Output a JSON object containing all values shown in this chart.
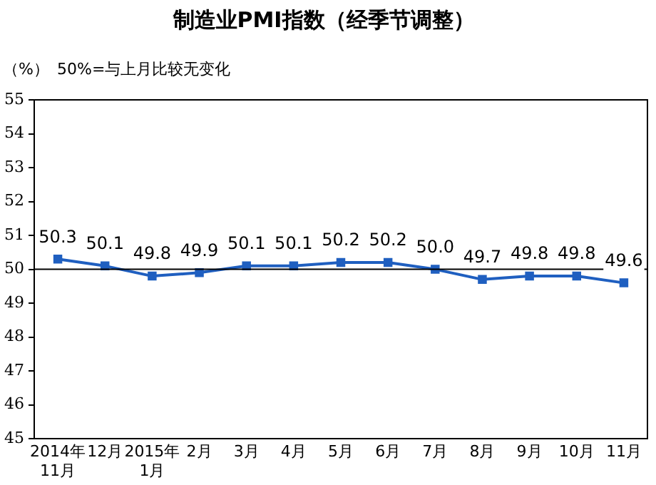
{
  "chart_data": {
    "type": "line",
    "title": "制造业PMI指数（经季节调整）",
    "ylabel": "（%）",
    "annotations": [
      "50%=与上月比较无变化"
    ],
    "categories": [
      "2014年\n11月",
      "12月",
      "2015年\n1月",
      "2月",
      "3月",
      "4月",
      "5月",
      "6月",
      "7月",
      "8月",
      "9月",
      "10月",
      "11月"
    ],
    "series": [
      {
        "color": "#1f5fc0",
        "values": [
          50.3,
          50.1,
          49.8,
          49.9,
          50.1,
          50.1,
          50.2,
          50.2,
          50.0,
          49.7,
          49.8,
          49.8,
          49.6
        ],
        "value_labels": [
          "50.3",
          "50.1",
          "49.8",
          "49.9",
          "50.1",
          "50.1",
          "50.2",
          "50.2",
          "50.0",
          "49.7",
          "49.8",
          "49.8",
          "49.6"
        ]
      }
    ],
    "ylim": [
      45,
      55
    ],
    "yticks": [
      45,
      46,
      47,
      48,
      49,
      50,
      51,
      52,
      53,
      54,
      55
    ],
    "ref_lines": [
      {
        "axis": "y",
        "value": 50,
        "color": "#000000"
      }
    ],
    "grid": false,
    "legend": false,
    "marker": "square",
    "line_style": "solid"
  }
}
